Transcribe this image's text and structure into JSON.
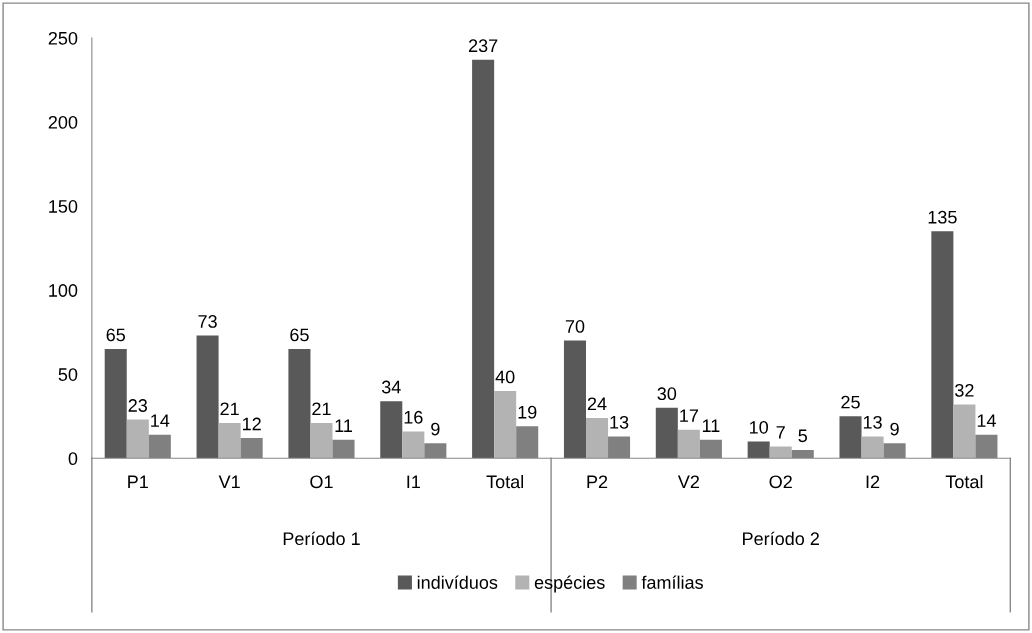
{
  "chart_data": {
    "type": "bar",
    "categories": [
      "P1",
      "V1",
      "O1",
      "I1",
      "Total",
      "P2",
      "V2",
      "O2",
      "I2",
      "Total"
    ],
    "series": [
      {
        "name": "indivíduos",
        "color": "#595959",
        "values": [
          65,
          73,
          65,
          34,
          237,
          70,
          30,
          10,
          25,
          135
        ]
      },
      {
        "name": "espécies",
        "color": "#b3b3b3",
        "values": [
          23,
          21,
          21,
          16,
          40,
          24,
          17,
          7,
          13,
          32
        ]
      },
      {
        "name": "famílias",
        "color": "#808080",
        "values": [
          14,
          12,
          11,
          9,
          19,
          13,
          11,
          5,
          9,
          14
        ]
      }
    ],
    "annotations": [
      "Período 1",
      "Período 2"
    ],
    "ylim": [
      0,
      250
    ],
    "yticks": [
      0,
      50,
      100,
      150,
      200,
      250
    ],
    "data_labels": true,
    "grid": false,
    "legend": "bottom"
  }
}
